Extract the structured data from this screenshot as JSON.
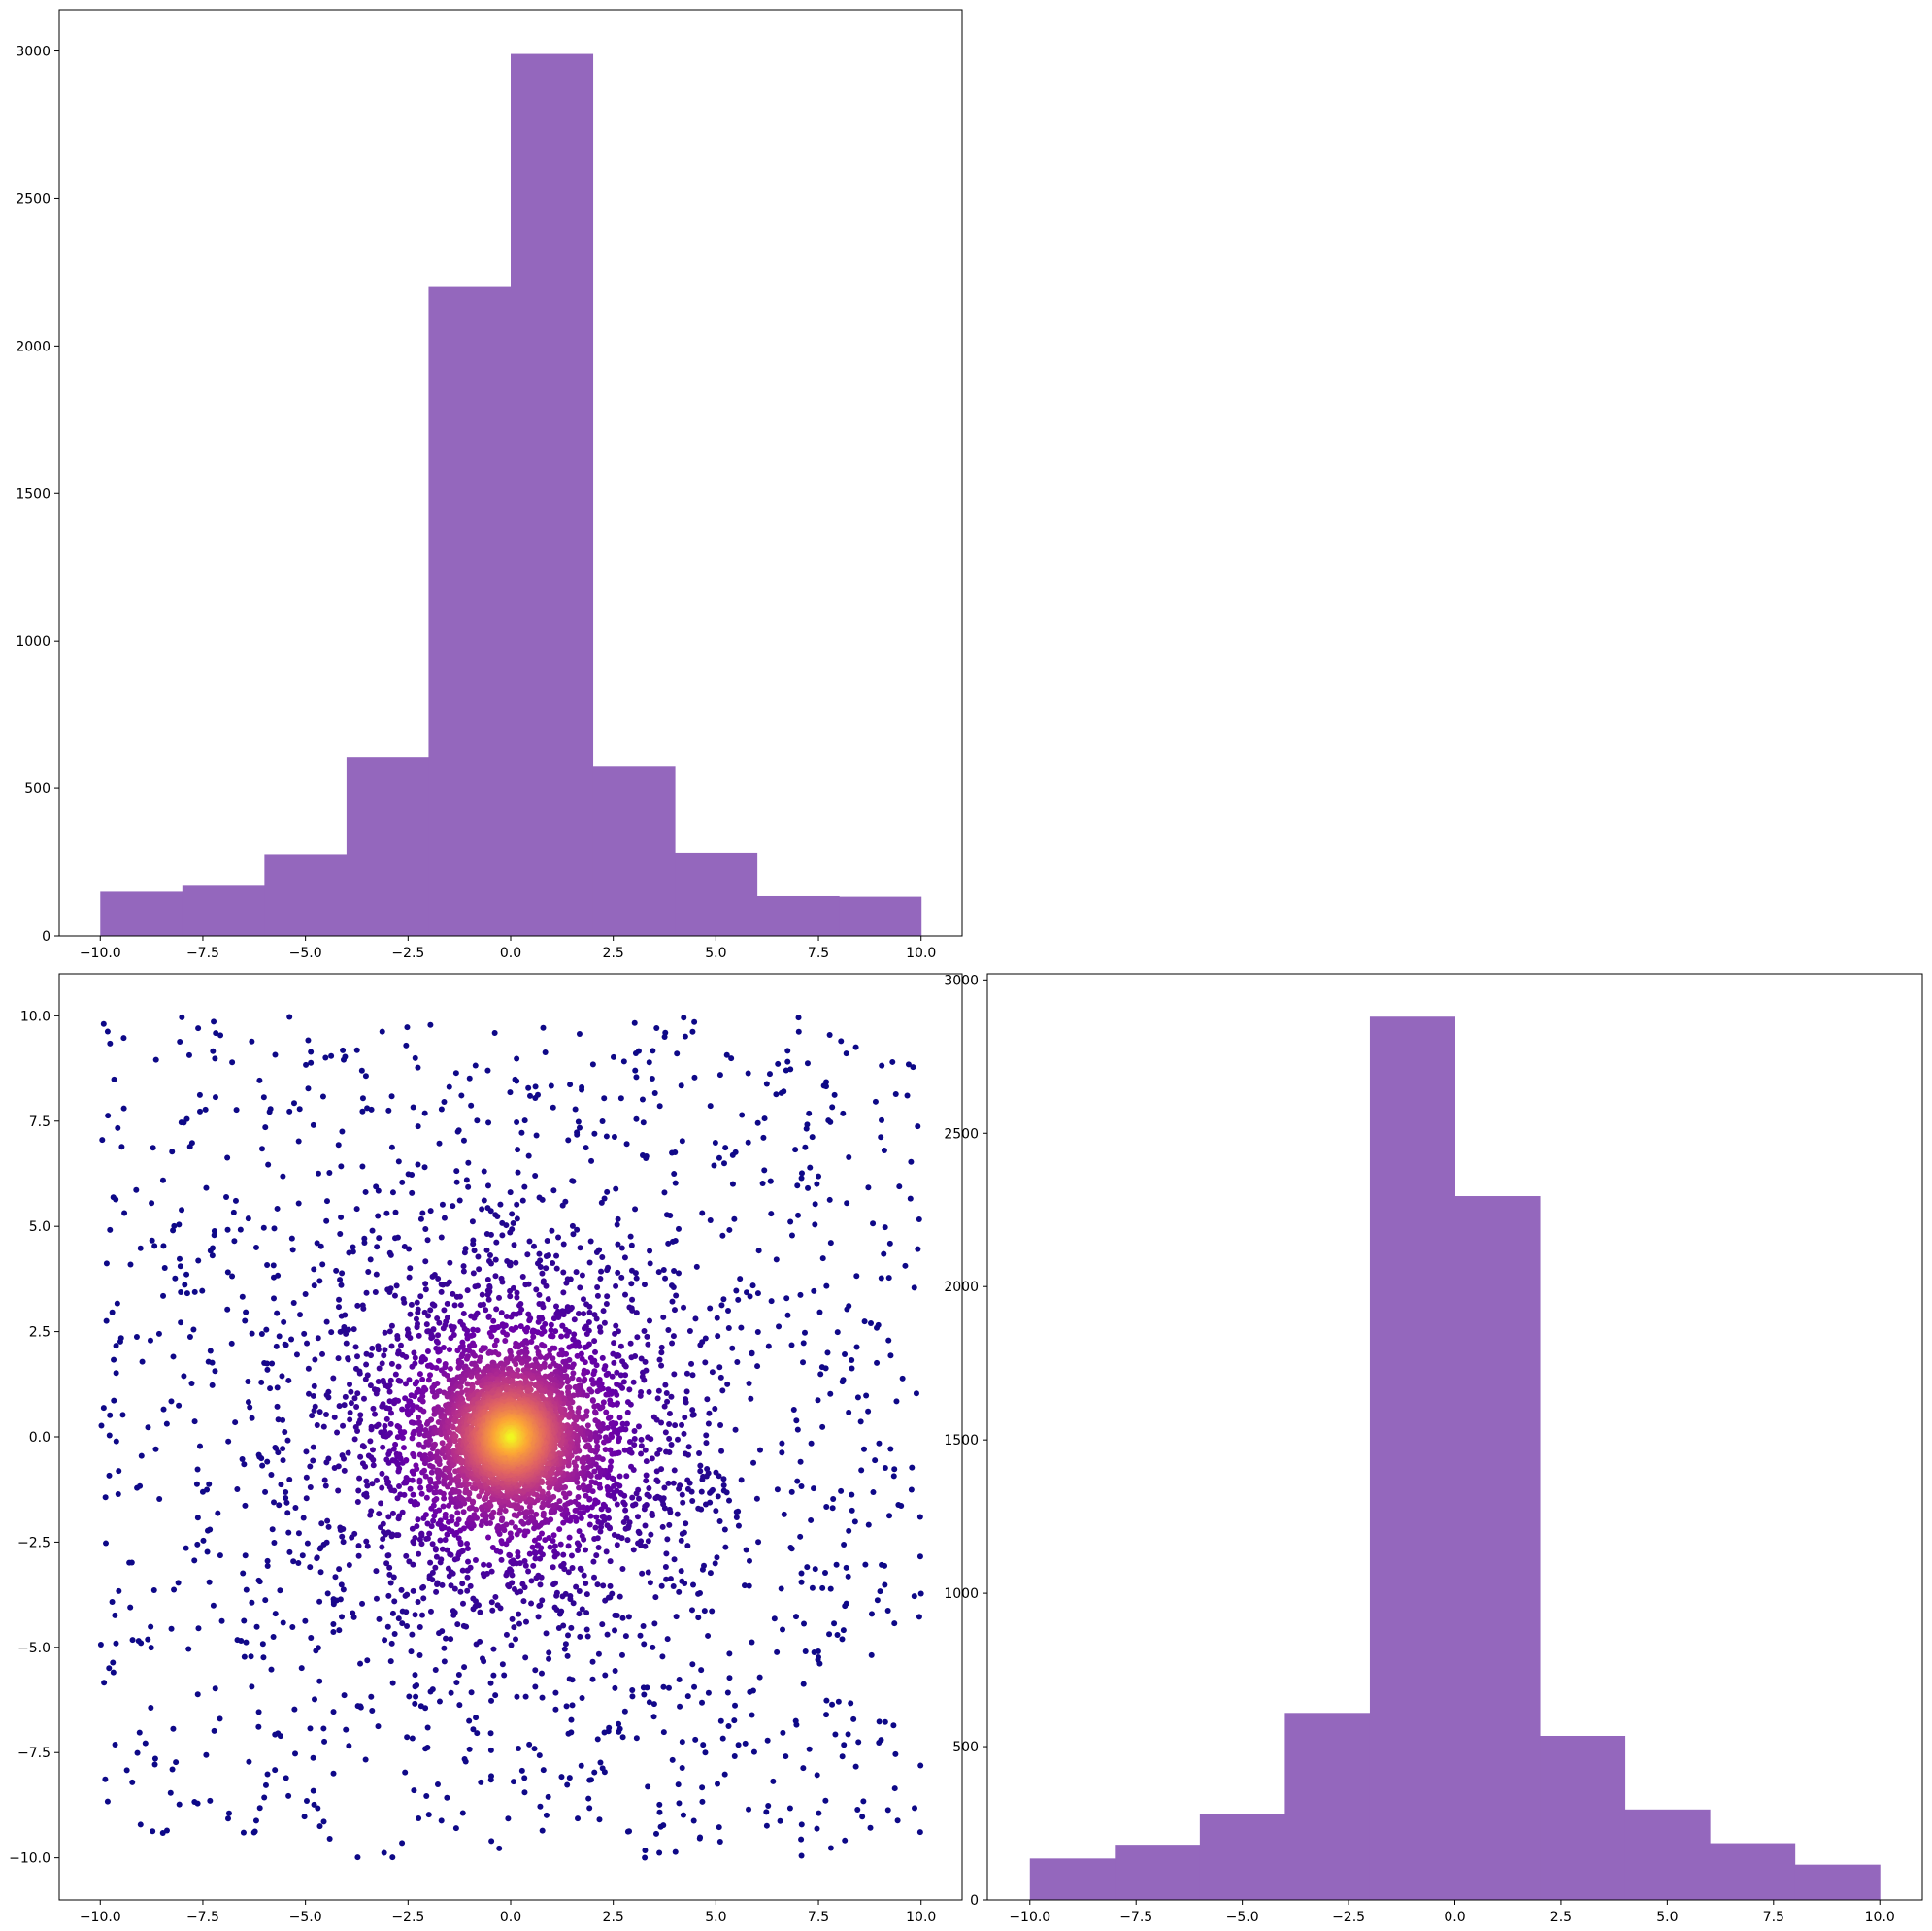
{
  "chart_data": [
    {
      "type": "bar",
      "panel": "top-left",
      "title": "",
      "xlabel": "",
      "ylabel": "",
      "bar_color": "#9467bd",
      "bin_edges": [
        -10,
        -8,
        -6,
        -4,
        -2,
        0,
        2,
        4,
        6,
        8,
        10
      ],
      "values": [
        150,
        170,
        275,
        605,
        2200,
        2990,
        575,
        280,
        135,
        133
      ],
      "xlim": [
        -11,
        11
      ],
      "ylim": [
        0,
        3140
      ],
      "xticks": [
        -10.0,
        -7.5,
        -5.0,
        -2.5,
        0.0,
        2.5,
        5.0,
        7.5,
        10.0
      ],
      "xtick_labels": [
        "−10.0",
        "−7.5",
        "−5.0",
        "−2.5",
        "0.0",
        "2.5",
        "5.0",
        "7.5",
        "10.0"
      ],
      "yticks": [
        0,
        500,
        1000,
        1500,
        2000,
        2500,
        3000
      ],
      "ytick_labels": [
        "0",
        "500",
        "1000",
        "1500",
        "2000",
        "2500",
        "3000"
      ],
      "grid": false
    },
    {
      "type": "scatter",
      "panel": "bottom-left",
      "title": "",
      "xlabel": "",
      "ylabel": "",
      "colormap": "plasma",
      "color_stops": [
        "#0d0887",
        "#6a00a8",
        "#b12a90",
        "#e16462",
        "#fca636",
        "#f0f921"
      ],
      "point_count": 6000,
      "xlim": [
        -11,
        11
      ],
      "ylim": [
        -11,
        11
      ],
      "xticks": [
        -10.0,
        -7.5,
        -5.0,
        -2.5,
        0.0,
        2.5,
        5.0,
        7.5,
        10.0
      ],
      "xtick_labels": [
        "−10.0",
        "−7.5",
        "−5.0",
        "−2.5",
        "0.0",
        "2.5",
        "5.0",
        "7.5",
        "10.0"
      ],
      "yticks": [
        -10.0,
        -7.5,
        -5.0,
        -2.5,
        0.0,
        2.5,
        5.0,
        7.5,
        10.0
      ],
      "ytick_labels": [
        "−10.0",
        "−7.5",
        "−5.0",
        "−2.5",
        "0.0",
        "2.5",
        "5.0",
        "7.5",
        "10.0"
      ],
      "grid": false
    },
    {
      "type": "bar",
      "panel": "bottom-right",
      "title": "",
      "xlabel": "",
      "ylabel": "",
      "bar_color": "#9467bd",
      "bin_edges": [
        -10,
        -8,
        -6,
        -4,
        -2,
        0,
        2,
        4,
        6,
        8,
        10
      ],
      "values": [
        135,
        180,
        280,
        610,
        2880,
        2295,
        535,
        295,
        185,
        115
      ],
      "xlim": [
        -11,
        11
      ],
      "ylim": [
        0,
        3020
      ],
      "xticks": [
        -10.0,
        -7.5,
        -5.0,
        -2.5,
        0.0,
        2.5,
        5.0,
        7.5,
        10.0
      ],
      "xtick_labels": [
        "−10.0",
        "−7.5",
        "−5.0",
        "−2.5",
        "0.0",
        "2.5",
        "5.0",
        "7.5",
        "10.0"
      ],
      "yticks": [
        0,
        500,
        1000,
        1500,
        2000,
        2500,
        3000
      ],
      "ytick_labels": [
        "0",
        "500",
        "1000",
        "1500",
        "2000",
        "2500",
        "3000"
      ],
      "grid": false
    }
  ]
}
